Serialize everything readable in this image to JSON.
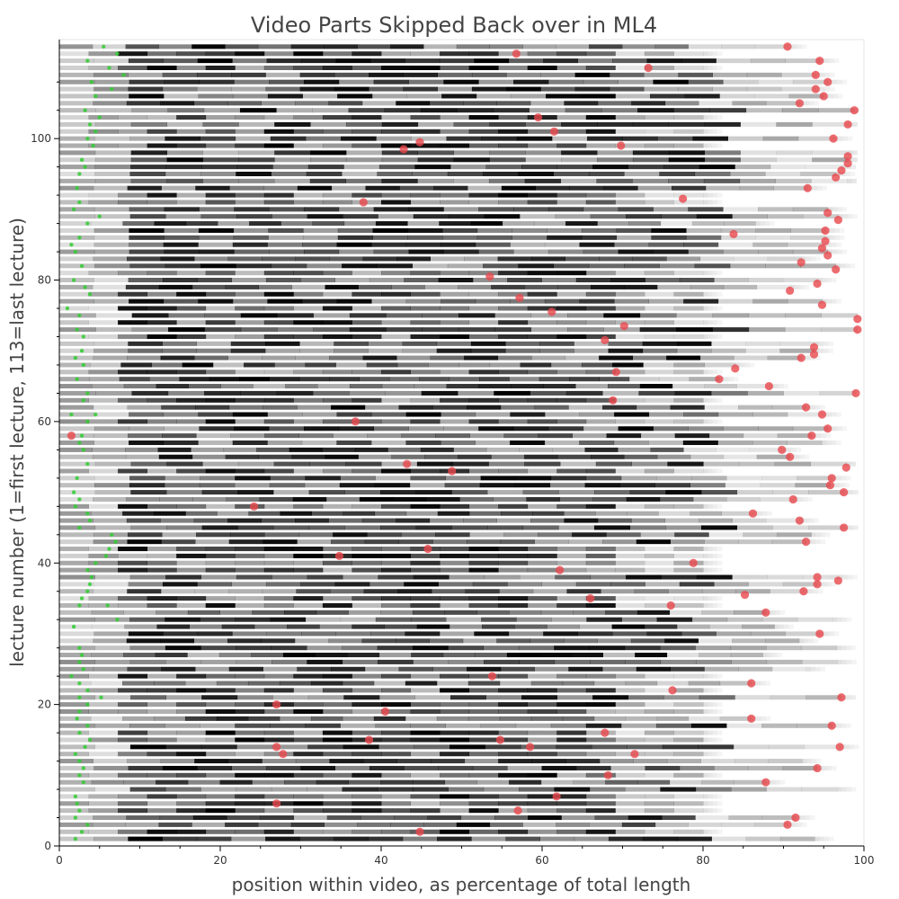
{
  "chart_data": {
    "type": "scatter",
    "title": "Video Parts Skipped Back over in ML4",
    "xlabel": "position within video, as percentage of total length",
    "ylabel": "lecture number (1=first lecture, 113=last lecture)",
    "xlim": [
      0,
      100
    ],
    "ylim": [
      0,
      114
    ],
    "x_ticks": [
      "0",
      "20",
      "40",
      "60",
      "80",
      "100"
    ],
    "y_ticks": [
      "0",
      "20",
      "40",
      "60",
      "80",
      "100"
    ],
    "grid": false,
    "colors": {
      "end_marker": "#e8474c",
      "green_dots": "#33cc33",
      "bars": "#000000"
    },
    "bar_series": {
      "name": "",
      "description_lectures": "one horizontal grayscale bar per lecture 1-113 spanning 0 to the red marker",
      "lecture_count": 113
    },
    "red_points": {
      "name": "",
      "points": [
        [
          1.5,
          58
        ],
        [
          90.5,
          113
        ],
        [
          56.8,
          112
        ],
        [
          94.5,
          111
        ],
        [
          73.2,
          110
        ],
        [
          94,
          109
        ],
        [
          95.5,
          108
        ],
        [
          94,
          107
        ],
        [
          95,
          106
        ],
        [
          92,
          105
        ],
        [
          98.8,
          104
        ],
        [
          59.5,
          103
        ],
        [
          98,
          102
        ],
        [
          61.5,
          101
        ],
        [
          96.2,
          100
        ],
        [
          44.8,
          99.5
        ],
        [
          69.8,
          99
        ],
        [
          42.8,
          98.5
        ],
        [
          98,
          97.5
        ],
        [
          98,
          96.5
        ],
        [
          97.2,
          95.5
        ],
        [
          96.5,
          94.5
        ],
        [
          93,
          93
        ],
        [
          77.5,
          91.5
        ],
        [
          37.8,
          91
        ],
        [
          95.5,
          89.5
        ],
        [
          96.8,
          88.5
        ],
        [
          95.2,
          87
        ],
        [
          83.8,
          86.5
        ],
        [
          95.2,
          85.5
        ],
        [
          94.8,
          84.5
        ],
        [
          95.5,
          83.5
        ],
        [
          92.2,
          82.5
        ],
        [
          96.5,
          81.5
        ],
        [
          53.5,
          80.5
        ],
        [
          94.2,
          79.5
        ],
        [
          90.8,
          78.5
        ],
        [
          57.2,
          77.5
        ],
        [
          94.8,
          76.5
        ],
        [
          61.2,
          75.5
        ],
        [
          99.2,
          74.5
        ],
        [
          70.2,
          73.5
        ],
        [
          99.2,
          73
        ],
        [
          67.8,
          71.5
        ],
        [
          93.8,
          70.5
        ],
        [
          93.8,
          69.5
        ],
        [
          92.2,
          69
        ],
        [
          84,
          67.5
        ],
        [
          69.2,
          67
        ],
        [
          82,
          66
        ],
        [
          88.2,
          65
        ],
        [
          99,
          64
        ],
        [
          68.8,
          63
        ],
        [
          92.8,
          62
        ],
        [
          94.8,
          61
        ],
        [
          36.8,
          60
        ],
        [
          95.5,
          59
        ],
        [
          93.5,
          58
        ],
        [
          89.8,
          56
        ],
        [
          90.8,
          55
        ],
        [
          43.2,
          54
        ],
        [
          97.8,
          53.5
        ],
        [
          48.8,
          53
        ],
        [
          96,
          52
        ],
        [
          95.8,
          51
        ],
        [
          97.5,
          50
        ],
        [
          91.2,
          49
        ],
        [
          24.2,
          48
        ],
        [
          86.2,
          47
        ],
        [
          92,
          46
        ],
        [
          97.5,
          45
        ],
        [
          92.8,
          43
        ],
        [
          45.8,
          42
        ],
        [
          34.8,
          41
        ],
        [
          78.8,
          40
        ],
        [
          62.2,
          39
        ],
        [
          94.2,
          38
        ],
        [
          96.8,
          37.5
        ],
        [
          94.2,
          37
        ],
        [
          92.5,
          36
        ],
        [
          85.2,
          35.5
        ],
        [
          66,
          35
        ],
        [
          76,
          34
        ],
        [
          87.8,
          33
        ],
        [
          94.5,
          30
        ],
        [
          53.8,
          24
        ],
        [
          86,
          23
        ],
        [
          76.2,
          22
        ],
        [
          97.2,
          21
        ],
        [
          27,
          20
        ],
        [
          40.5,
          19
        ],
        [
          86,
          18
        ],
        [
          96,
          17
        ],
        [
          67.8,
          16
        ],
        [
          38.5,
          15
        ],
        [
          54.8,
          15
        ],
        [
          27,
          14
        ],
        [
          58.5,
          14
        ],
        [
          97,
          14
        ],
        [
          27.8,
          13
        ],
        [
          71.5,
          13
        ],
        [
          94.2,
          11
        ],
        [
          68.2,
          10
        ],
        [
          87.8,
          9
        ],
        [
          61.8,
          7
        ],
        [
          27,
          6
        ],
        [
          57,
          5
        ],
        [
          91.5,
          4
        ],
        [
          90.5,
          3
        ],
        [
          44.8,
          2
        ]
      ]
    },
    "green_points": {
      "name": "",
      "points": [
        [
          5.5,
          113
        ],
        [
          7.2,
          112
        ],
        [
          3.5,
          111
        ],
        [
          6.2,
          110
        ],
        [
          8,
          109
        ],
        [
          4,
          108
        ],
        [
          6.5,
          107
        ],
        [
          4.5,
          106
        ],
        [
          3.2,
          104
        ],
        [
          5,
          103
        ],
        [
          3.8,
          102
        ],
        [
          4.5,
          101
        ],
        [
          3.5,
          100
        ],
        [
          4.2,
          99
        ],
        [
          2.8,
          97
        ],
        [
          3.2,
          96
        ],
        [
          2.5,
          95
        ],
        [
          2.2,
          93
        ],
        [
          2.5,
          91
        ],
        [
          1.8,
          90
        ],
        [
          5,
          89
        ],
        [
          3.5,
          88
        ],
        [
          2.5,
          86
        ],
        [
          1.5,
          85
        ],
        [
          2,
          84
        ],
        [
          2.8,
          82
        ],
        [
          1.8,
          80
        ],
        [
          3.2,
          79
        ],
        [
          3.8,
          78
        ],
        [
          1,
          76
        ],
        [
          2.5,
          75
        ],
        [
          2.2,
          73
        ],
        [
          3,
          72
        ],
        [
          2.8,
          70
        ],
        [
          2,
          69
        ],
        [
          3,
          68
        ],
        [
          2.2,
          66
        ],
        [
          3.5,
          64
        ],
        [
          3,
          63
        ],
        [
          1.5,
          61
        ],
        [
          4.5,
          61
        ],
        [
          3.5,
          60
        ],
        [
          2.8,
          58
        ],
        [
          2.5,
          57
        ],
        [
          3,
          56
        ],
        [
          3.5,
          54
        ],
        [
          2.2,
          52
        ],
        [
          1.8,
          50
        ],
        [
          2.5,
          49
        ],
        [
          2,
          48
        ],
        [
          3.5,
          47
        ],
        [
          3.8,
          46
        ],
        [
          2.5,
          45
        ],
        [
          6.5,
          44
        ],
        [
          7,
          43
        ],
        [
          6.2,
          42
        ],
        [
          5.8,
          41
        ],
        [
          4.5,
          40
        ],
        [
          3.5,
          39
        ],
        [
          4,
          38
        ],
        [
          3.8,
          37
        ],
        [
          3.5,
          36
        ],
        [
          2.8,
          35
        ],
        [
          2.5,
          34
        ],
        [
          6,
          34
        ],
        [
          7.2,
          32
        ],
        [
          1.8,
          31
        ],
        [
          2.5,
          28
        ],
        [
          2.8,
          27
        ],
        [
          2.5,
          26
        ],
        [
          3,
          25
        ],
        [
          1.5,
          24
        ],
        [
          2.5,
          23
        ],
        [
          3.5,
          22
        ],
        [
          2.5,
          21
        ],
        [
          5.2,
          21
        ],
        [
          3.5,
          20
        ],
        [
          2.5,
          19
        ],
        [
          2.2,
          18
        ],
        [
          3.5,
          17
        ],
        [
          2.5,
          16
        ],
        [
          3.8,
          15
        ],
        [
          3.2,
          14
        ],
        [
          2,
          13
        ],
        [
          2.5,
          12
        ],
        [
          3,
          11
        ],
        [
          2.5,
          10
        ],
        [
          3,
          9
        ],
        [
          2,
          7
        ],
        [
          2.2,
          6
        ],
        [
          2.5,
          5
        ],
        [
          2,
          4
        ],
        [
          3.5,
          3
        ],
        [
          2.8,
          2
        ],
        [
          2,
          1
        ]
      ]
    }
  }
}
